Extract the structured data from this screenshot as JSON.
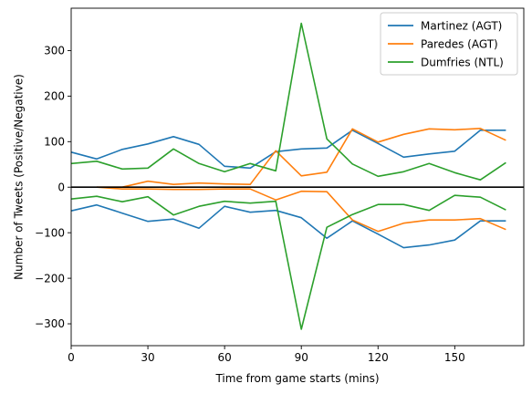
{
  "chart_data": {
    "type": "line",
    "xlabel": "Time from game starts (mins)",
    "ylabel": "Number of Tweets (Positive/Negative)",
    "xlim": [
      0,
      177
    ],
    "ylim": [
      -348,
      393
    ],
    "xticks": [
      0,
      30,
      60,
      90,
      120,
      150
    ],
    "yticks": [
      -300,
      -200,
      -100,
      0,
      100,
      200,
      300
    ],
    "zero_line": true,
    "grid": false,
    "legend_position": "top-right",
    "x": [
      0,
      10,
      20,
      30,
      40,
      50,
      60,
      70,
      80,
      90,
      100,
      110,
      120,
      130,
      140,
      150,
      160,
      170
    ],
    "series": [
      {
        "name": "Martinez (AGT)",
        "color": "#1f77b4",
        "positive": [
          77,
          62,
          83,
          95,
          111,
          94,
          46,
          42,
          78,
          84,
          86,
          125,
          96,
          66,
          73,
          79,
          125,
          125
        ],
        "negative": [
          -52,
          -39,
          -57,
          -75,
          -70,
          -90,
          -42,
          -55,
          -51,
          -67,
          -112,
          -74,
          -103,
          -133,
          -127,
          -116,
          -74,
          -74
        ]
      },
      {
        "name": "Paredes (AGT)",
        "color": "#ff7f0e",
        "x_start_index": 1,
        "positive": [
          null,
          0,
          0,
          13,
          6,
          9,
          7,
          6,
          80,
          25,
          33,
          128,
          99,
          116,
          128,
          126,
          129,
          103
        ],
        "negative": [
          null,
          0,
          -4,
          -4,
          -5,
          -5,
          -4,
          -4,
          -28,
          -9,
          -10,
          -72,
          -97,
          -79,
          -72,
          -72,
          -69,
          -93
        ]
      },
      {
        "name": "Dumfries (NTL)",
        "color": "#2ca02c",
        "positive": [
          52,
          57,
          40,
          42,
          84,
          52,
          34,
          52,
          36,
          360,
          106,
          51,
          24,
          34,
          52,
          32,
          16,
          54
        ],
        "negative": [
          -26,
          -20,
          -32,
          -21,
          -61,
          -42,
          -31,
          -35,
          -31,
          -312,
          -88,
          -60,
          -38,
          -38,
          -51,
          -18,
          -22,
          -50
        ]
      }
    ]
  }
}
